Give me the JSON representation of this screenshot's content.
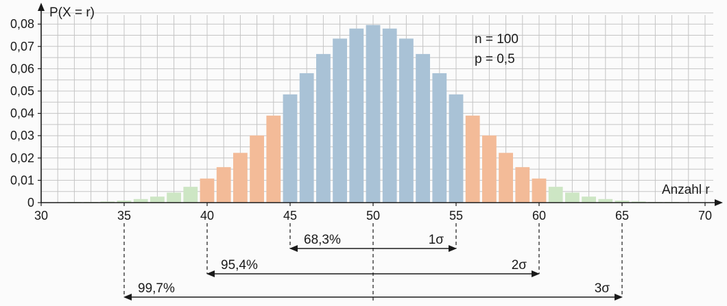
{
  "chart_data": {
    "type": "bar",
    "ylabel": "P(X = r)",
    "xlabel": "Anzahl r",
    "x_ticks": [
      "30",
      "35",
      "40",
      "45",
      "50",
      "55",
      "60",
      "65",
      "70"
    ],
    "y_ticks": [
      "0",
      "0,01",
      "0,02",
      "0,03",
      "0,04",
      "0,05",
      "0,06",
      "0,07",
      "0,08"
    ],
    "xlim": [
      30,
      70
    ],
    "ylim": [
      0,
      0.085
    ],
    "grid": true,
    "params": [
      "n = 100",
      "p = 0,5"
    ],
    "colors": {
      "within_1sigma": "#a9c2d6",
      "within_2sigma": "#f3bb98",
      "within_3sigma": "#cde6c4",
      "grid": "#c4c4c4"
    },
    "bars": [
      {
        "x": 32,
        "y": 0.0001,
        "group": "outside"
      },
      {
        "x": 33,
        "y": 0.0002,
        "group": "outside"
      },
      {
        "x": 34,
        "y": 0.0005,
        "group": "outside"
      },
      {
        "x": 35,
        "y": 0.0009,
        "group": "within_3sigma"
      },
      {
        "x": 36,
        "y": 0.0016,
        "group": "within_3sigma"
      },
      {
        "x": 37,
        "y": 0.0027,
        "group": "within_3sigma"
      },
      {
        "x": 38,
        "y": 0.0045,
        "group": "within_3sigma"
      },
      {
        "x": 39,
        "y": 0.0071,
        "group": "within_3sigma"
      },
      {
        "x": 40,
        "y": 0.0108,
        "group": "within_2sigma"
      },
      {
        "x": 41,
        "y": 0.0159,
        "group": "within_2sigma"
      },
      {
        "x": 42,
        "y": 0.0223,
        "group": "within_2sigma"
      },
      {
        "x": 43,
        "y": 0.0301,
        "group": "within_2sigma"
      },
      {
        "x": 44,
        "y": 0.039,
        "group": "within_2sigma"
      },
      {
        "x": 45,
        "y": 0.0485,
        "group": "within_1sigma"
      },
      {
        "x": 46,
        "y": 0.058,
        "group": "within_1sigma"
      },
      {
        "x": 47,
        "y": 0.0666,
        "group": "within_1sigma"
      },
      {
        "x": 48,
        "y": 0.0735,
        "group": "within_1sigma"
      },
      {
        "x": 49,
        "y": 0.078,
        "group": "within_1sigma"
      },
      {
        "x": 50,
        "y": 0.0796,
        "group": "within_1sigma"
      },
      {
        "x": 51,
        "y": 0.078,
        "group": "within_1sigma"
      },
      {
        "x": 52,
        "y": 0.0735,
        "group": "within_1sigma"
      },
      {
        "x": 53,
        "y": 0.0666,
        "group": "within_1sigma"
      },
      {
        "x": 54,
        "y": 0.058,
        "group": "within_1sigma"
      },
      {
        "x": 55,
        "y": 0.0485,
        "group": "within_1sigma"
      },
      {
        "x": 56,
        "y": 0.039,
        "group": "within_2sigma"
      },
      {
        "x": 57,
        "y": 0.0301,
        "group": "within_2sigma"
      },
      {
        "x": 58,
        "y": 0.0223,
        "group": "within_2sigma"
      },
      {
        "x": 59,
        "y": 0.0159,
        "group": "within_2sigma"
      },
      {
        "x": 60,
        "y": 0.0108,
        "group": "within_2sigma"
      },
      {
        "x": 61,
        "y": 0.0071,
        "group": "within_3sigma"
      },
      {
        "x": 62,
        "y": 0.0045,
        "group": "within_3sigma"
      },
      {
        "x": 63,
        "y": 0.0027,
        "group": "within_3sigma"
      },
      {
        "x": 64,
        "y": 0.0016,
        "group": "within_3sigma"
      },
      {
        "x": 65,
        "y": 0.0009,
        "group": "within_3sigma"
      },
      {
        "x": 66,
        "y": 0.0005,
        "group": "outside"
      },
      {
        "x": 67,
        "y": 0.0002,
        "group": "outside"
      },
      {
        "x": 68,
        "y": 0.0001,
        "group": "outside"
      }
    ],
    "intervals": [
      {
        "from": 45,
        "to": 55,
        "percent": "68,3%",
        "sigma": "1σ"
      },
      {
        "from": 40,
        "to": 60,
        "percent": "95,4%",
        "sigma": "2σ"
      },
      {
        "from": 35,
        "to": 65,
        "percent": "99,7%",
        "sigma": "3σ"
      }
    ],
    "center": 50
  }
}
